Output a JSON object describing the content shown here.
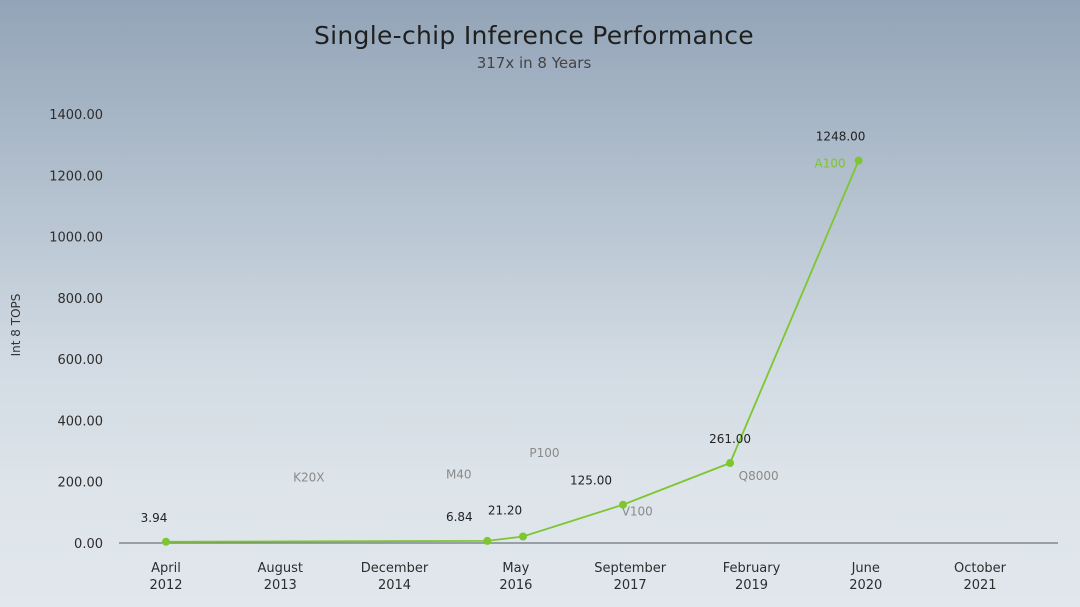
{
  "chart_data": {
    "type": "line",
    "title": "Single-chip Inference Performance",
    "subtitle": "317x in 8 Years",
    "ylabel": "Int 8 TOPS",
    "ylim": [
      0,
      1400
    ],
    "y_ticks": [
      "0.00",
      "200.00",
      "400.00",
      "600.00",
      "800.00",
      "1000.00",
      "1200.00",
      "1400.00"
    ],
    "x_ticks": [
      {
        "month": "April",
        "year": "2012"
      },
      {
        "month": "August",
        "year": "2013"
      },
      {
        "month": "December",
        "year": "2014"
      },
      {
        "month": "May",
        "year": "2016"
      },
      {
        "month": "September",
        "year": "2017"
      },
      {
        "month": "February",
        "year": "2019"
      },
      {
        "month": "June",
        "year": "2020"
      },
      {
        "month": "October",
        "year": "2021"
      }
    ],
    "series": [
      {
        "color": "#7ec62f",
        "points": [
          {
            "x": "2012-04",
            "y": 3.94,
            "label": "3.94"
          },
          {
            "x": "2016-01",
            "y": 6.84,
            "label": "6.84"
          },
          {
            "x": "2016-06",
            "y": 21.2,
            "label": "21.20"
          },
          {
            "x": "2017-08",
            "y": 125.0,
            "label": "125.00"
          },
          {
            "x": "2018-11",
            "y": 261.0,
            "label": "261.00"
          },
          {
            "x": "2020-05",
            "y": 1248.0,
            "label": "1248.00"
          }
        ]
      }
    ],
    "annotations": [
      {
        "text": "K20X",
        "x": "2013-12",
        "y": 200,
        "style": "muted"
      },
      {
        "text": "M40",
        "x": "2015-09",
        "y": 210,
        "style": "muted"
      },
      {
        "text": "P100",
        "x": "2016-09",
        "y": 280,
        "style": "muted"
      },
      {
        "text": "V100",
        "x": "2017-10",
        "y": 90,
        "style": "muted"
      },
      {
        "text": "Q8000",
        "x": "2019-03",
        "y": 205,
        "style": "muted"
      },
      {
        "text": "A100",
        "x": "2020-01",
        "y": 1225,
        "style": "accent"
      }
    ],
    "grid": false,
    "legend": "none"
  }
}
